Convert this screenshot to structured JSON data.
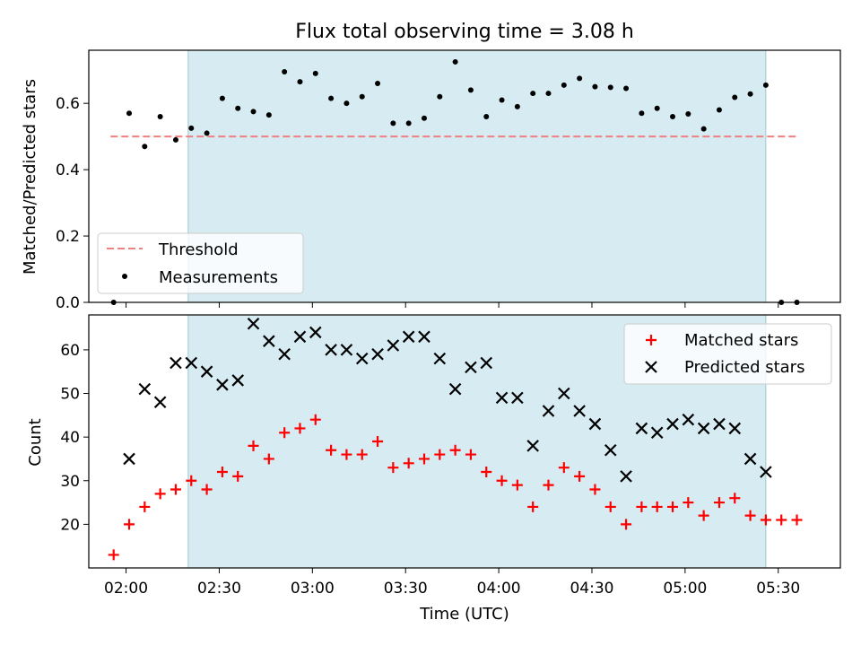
{
  "chart_data": [
    {
      "type": "scatter",
      "title": "Flux total observing time = 3.08 h",
      "ylabel": "Matched/Predicted stars",
      "ylim": [
        0,
        0.76
      ],
      "yticks": [
        0.0,
        0.2,
        0.4,
        0.6
      ],
      "ytick_labels": [
        "0.0",
        "0.2",
        "0.4",
        "0.6"
      ],
      "shaded_interval": [
        "02:20",
        "05:26"
      ],
      "shade_color": "#add8e6",
      "legend_position": "lower-left",
      "series": [
        {
          "name": "Threshold",
          "style": "dashed-line",
          "color": "#f08080",
          "x": [
            "01:55",
            "05:36"
          ],
          "y": [
            0.5,
            0.5
          ]
        },
        {
          "name": "Measurements",
          "style": "dot",
          "color": "#000000",
          "x": [
            "01:56",
            "02:01",
            "02:06",
            "02:11",
            "02:16",
            "02:21",
            "02:26",
            "02:31",
            "02:36",
            "02:41",
            "02:46",
            "02:51",
            "02:56",
            "03:01",
            "03:06",
            "03:11",
            "03:16",
            "03:21",
            "03:26",
            "03:31",
            "03:36",
            "03:41",
            "03:46",
            "03:51",
            "03:56",
            "04:01",
            "04:06",
            "04:11",
            "04:16",
            "04:21",
            "04:26",
            "04:31",
            "04:36",
            "04:41",
            "04:46",
            "04:51",
            "04:56",
            "05:01",
            "05:06",
            "05:11",
            "05:16",
            "05:21",
            "05:26",
            "05:31",
            "05:36"
          ],
          "y": [
            0.0,
            0.57,
            0.47,
            0.56,
            0.49,
            0.525,
            0.51,
            0.615,
            0.585,
            0.575,
            0.565,
            0.695,
            0.665,
            0.69,
            0.615,
            0.6,
            0.62,
            0.66,
            0.54,
            0.54,
            0.555,
            0.62,
            0.725,
            0.64,
            0.56,
            0.61,
            0.59,
            0.63,
            0.63,
            0.655,
            0.675,
            0.65,
            0.648,
            0.645,
            0.57,
            0.585,
            0.56,
            0.568,
            0.523,
            0.58,
            0.618,
            0.628,
            0.655,
            0.0,
            0.0
          ]
        }
      ]
    },
    {
      "type": "scatter",
      "xlabel": "Time (UTC)",
      "ylabel": "Count",
      "ylim": [
        10,
        68
      ],
      "yticks": [
        20,
        30,
        40,
        50,
        60
      ],
      "ytick_labels": [
        "20",
        "30",
        "40",
        "50",
        "60"
      ],
      "xticks": [
        "02:00",
        "02:30",
        "03:00",
        "03:30",
        "04:00",
        "04:30",
        "05:00",
        "05:30"
      ],
      "xlim": [
        "01:48",
        "05:50"
      ],
      "shaded_interval": [
        "02:20",
        "05:26"
      ],
      "legend_position": "top-right",
      "series": [
        {
          "name": "Matched stars",
          "style": "plus",
          "color": "#ff0000",
          "x": [
            "01:56",
            "02:01",
            "02:06",
            "02:11",
            "02:16",
            "02:21",
            "02:26",
            "02:31",
            "02:36",
            "02:41",
            "02:46",
            "02:51",
            "02:56",
            "03:01",
            "03:06",
            "03:11",
            "03:16",
            "03:21",
            "03:26",
            "03:31",
            "03:36",
            "03:41",
            "03:46",
            "03:51",
            "03:56",
            "04:01",
            "04:06",
            "04:11",
            "04:16",
            "04:21",
            "04:26",
            "04:31",
            "04:36",
            "04:41",
            "04:46",
            "04:51",
            "04:56",
            "05:01",
            "05:06",
            "05:11",
            "05:16",
            "05:21",
            "05:26",
            "05:31",
            "05:36"
          ],
          "y": [
            13,
            20,
            24,
            27,
            28,
            30,
            28,
            32,
            31,
            38,
            35,
            41,
            42,
            44,
            37,
            36,
            36,
            39,
            33,
            34,
            35,
            36,
            37,
            36,
            32,
            30,
            29,
            24,
            29,
            33,
            31,
            28,
            24,
            20,
            24,
            24,
            24,
            25,
            22,
            25,
            26,
            22,
            21,
            21,
            21
          ]
        },
        {
          "name": "Predicted stars",
          "style": "x",
          "color": "#000000",
          "x": [
            "02:01",
            "02:06",
            "02:11",
            "02:16",
            "02:21",
            "02:26",
            "02:31",
            "02:36",
            "02:41",
            "02:46",
            "02:51",
            "02:56",
            "03:01",
            "03:06",
            "03:11",
            "03:16",
            "03:21",
            "03:26",
            "03:31",
            "03:36",
            "03:41",
            "03:46",
            "03:51",
            "03:56",
            "04:01",
            "04:06",
            "04:11",
            "04:16",
            "04:21",
            "04:26",
            "04:31",
            "04:36",
            "04:41",
            "04:46",
            "04:51",
            "04:56",
            "05:01",
            "05:06",
            "05:11",
            "05:16",
            "05:21",
            "05:26"
          ],
          "y": [
            35,
            51,
            48,
            57,
            57,
            55,
            52,
            53,
            66,
            62,
            59,
            63,
            64,
            60,
            60,
            58,
            59,
            61,
            63,
            63,
            58,
            51,
            56,
            57,
            49,
            49,
            38,
            46,
            50,
            46,
            43,
            37,
            31,
            42,
            41,
            43,
            44,
            42,
            43,
            42,
            35,
            32
          ]
        }
      ]
    }
  ]
}
